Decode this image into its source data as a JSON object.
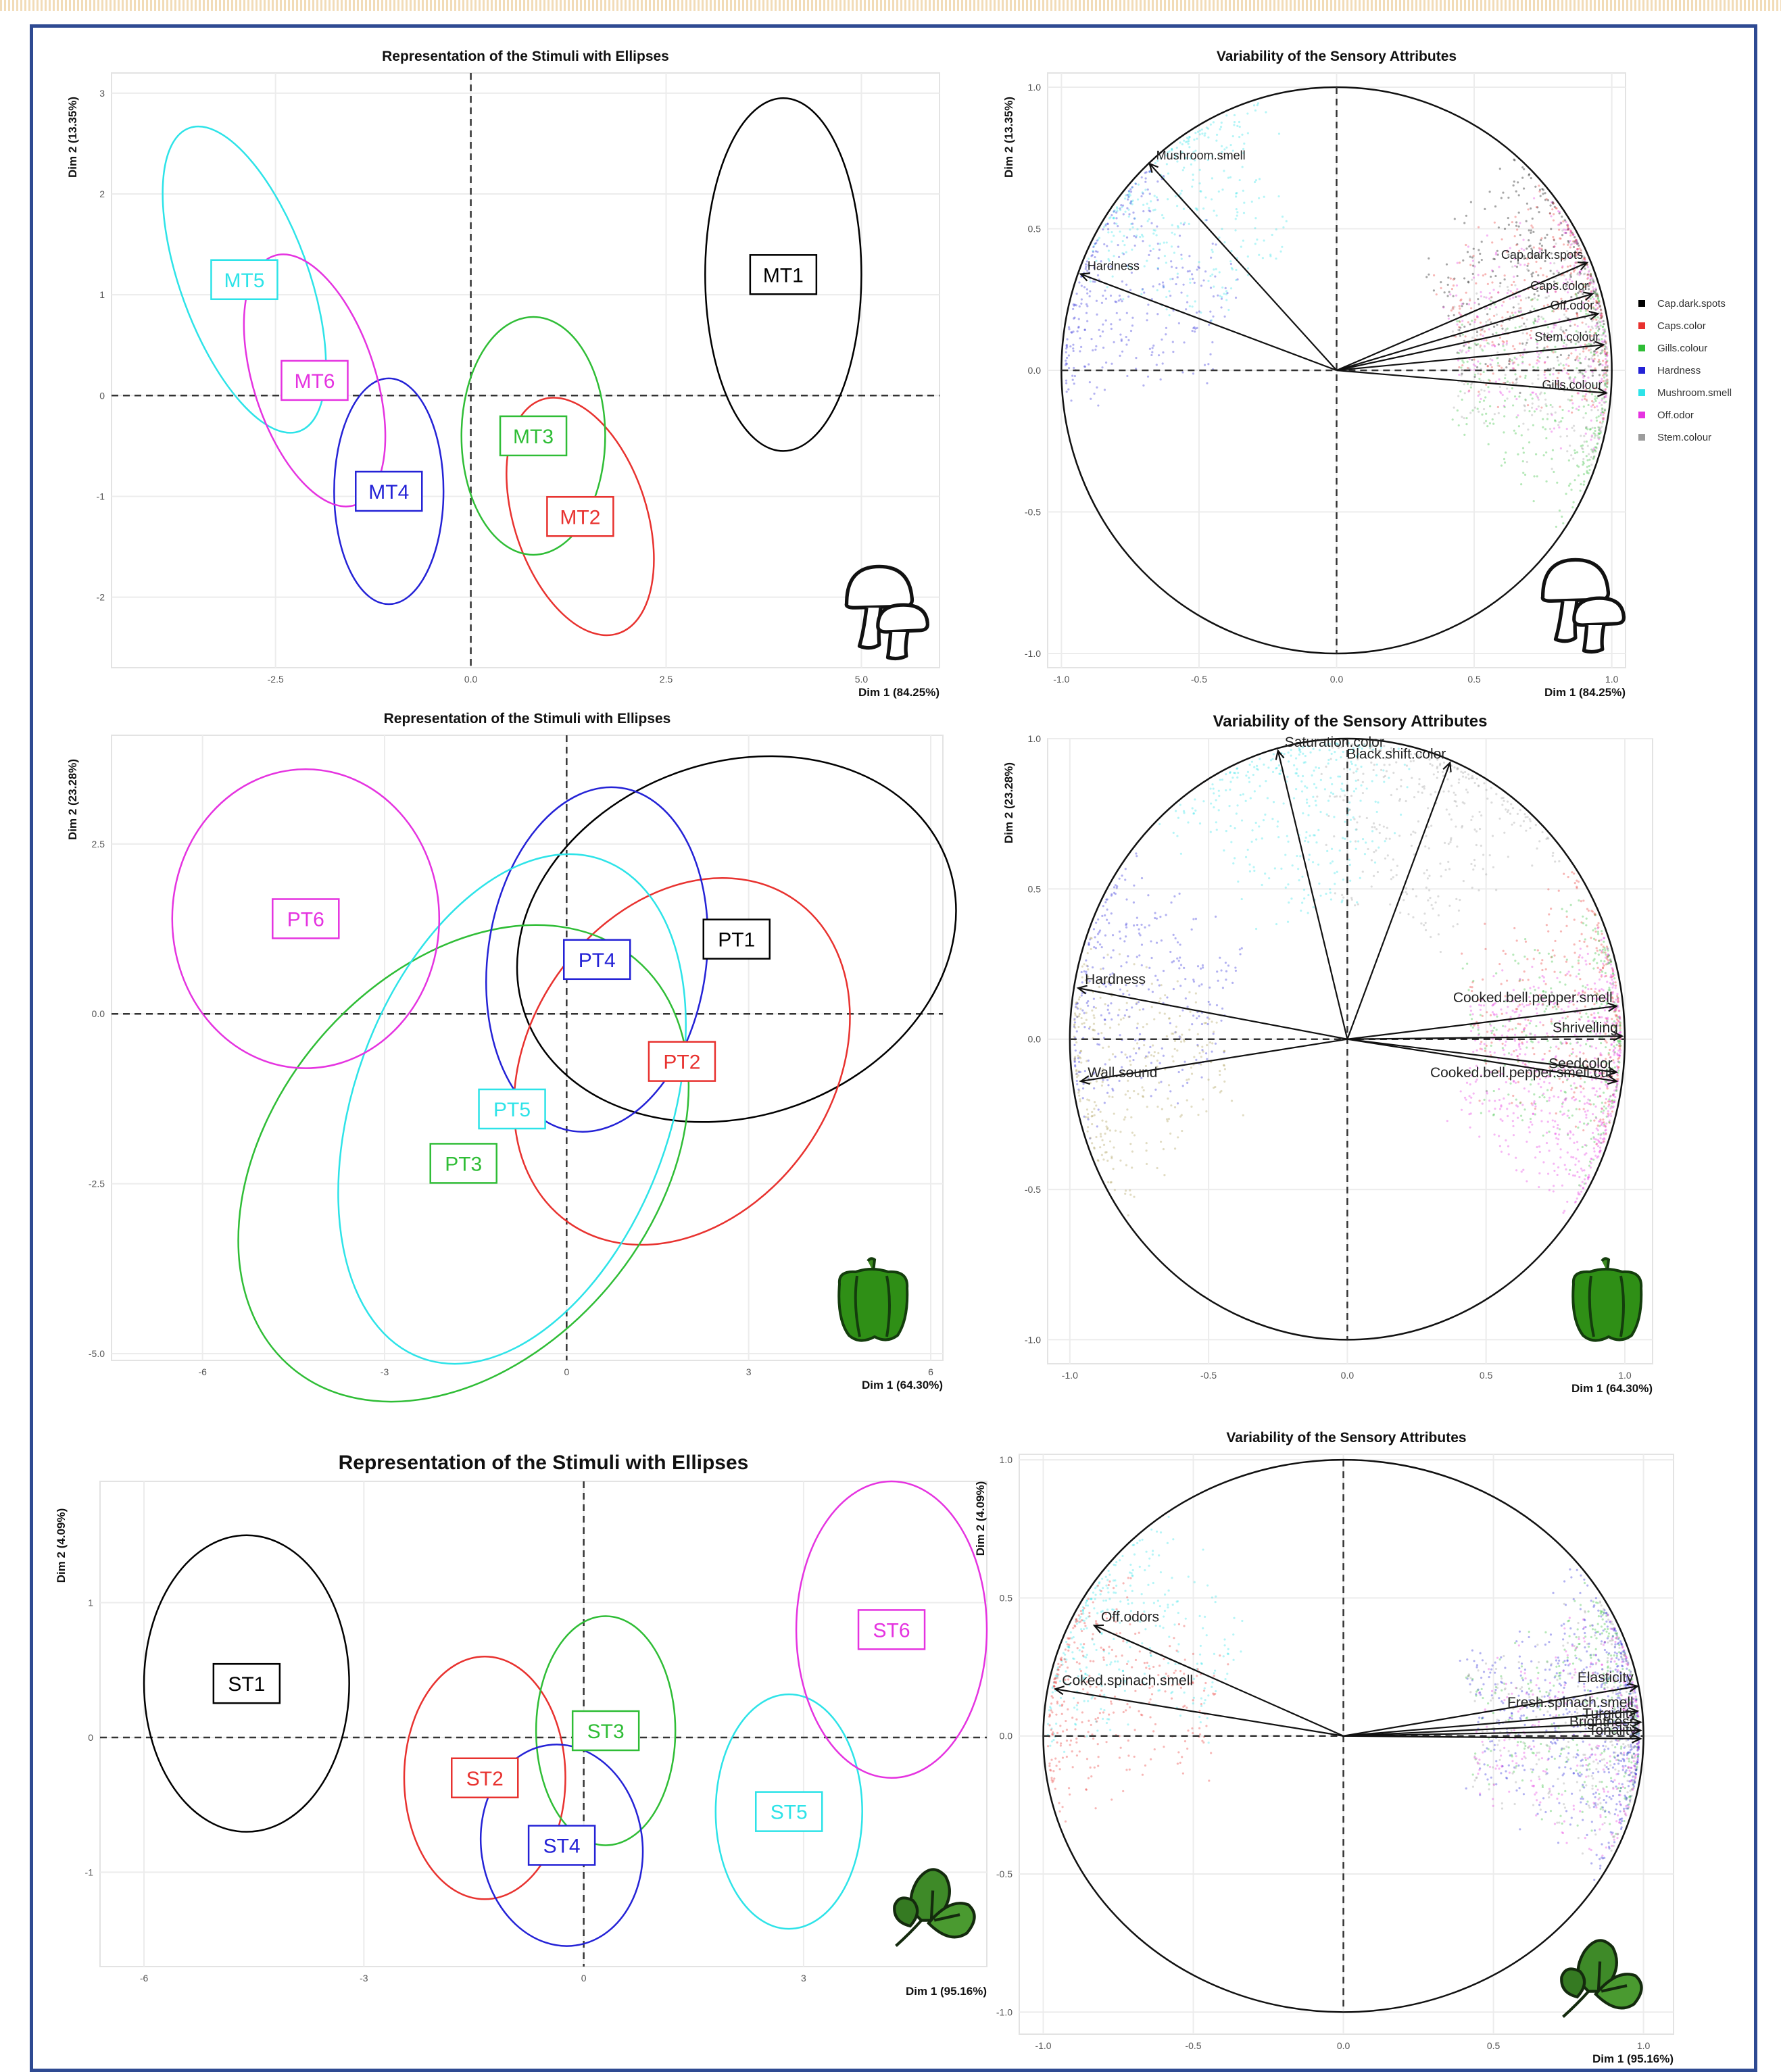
{
  "palette": {
    "black": "#000000",
    "red": "#e8322f",
    "green": "#2fbd36",
    "blue": "#2422d6",
    "cyan": "#2de3e8",
    "magenta": "#e533e0",
    "grey": "#9c9c9c",
    "navy": "#2e4a92"
  },
  "icons": {
    "mushroom": "mushroom-icon",
    "pepper": "bell-pepper-icon",
    "spinach": "spinach-icon"
  },
  "panels": [
    {
      "id": "mushroom-stimuli",
      "title": "Representation of the Stimuli with Ellipses",
      "xlabel": "Dim 1 (84.25%)",
      "ylabel": "Dim 2 (13.35%)"
    },
    {
      "id": "mushroom-attributes",
      "title": "Variability of the Sensory Attributes",
      "xlabel": "Dim 1 (84.25%)",
      "ylabel": "Dim 2 (13.35%)"
    },
    {
      "id": "pepper-stimuli",
      "title": "Representation of the Stimuli with Ellipses",
      "xlabel": "Dim 1 (64.30%)",
      "ylabel": "Dim 2 (23.28%)"
    },
    {
      "id": "pepper-attributes",
      "title": "Variability of the Sensory Attributes",
      "xlabel": "Dim 1 (64.30%)",
      "ylabel": "Dim 2 (23.28%)"
    },
    {
      "id": "spinach-stimuli",
      "title": "Representation of the Stimuli with Ellipses",
      "xlabel": "Dim 1 (95.16%)",
      "ylabel": "Dim 2 (4.09%)"
    },
    {
      "id": "spinach-attributes",
      "title": "Variability of the Sensory Attributes",
      "xlabel": "Dim 1 (95.16%)",
      "ylabel": "Dim 2 (4.09%)"
    }
  ],
  "chart_data": [
    {
      "type": "scatter",
      "subtype": "confidence-ellipses",
      "panel": 0,
      "xlim": [
        -4.6,
        6.0
      ],
      "ylim": [
        -2.7,
        3.2
      ],
      "xticks": [
        "-2.5",
        "0.0",
        "2.5",
        "5.0"
      ],
      "yticks": [
        "3",
        "2",
        "1",
        "0",
        "-1",
        "-2"
      ],
      "grid": true,
      "stimuli": [
        {
          "label": "MT1",
          "x": 4.0,
          "y": 1.2,
          "rx": 1.0,
          "ry": 1.75,
          "angle": 0,
          "color": "black"
        },
        {
          "label": "MT2",
          "x": 1.4,
          "y": -1.2,
          "rx": 0.85,
          "ry": 1.22,
          "angle": -18,
          "color": "red"
        },
        {
          "label": "MT3",
          "x": 0.8,
          "y": -0.4,
          "rx": 0.92,
          "ry": 1.18,
          "angle": 0,
          "color": "green"
        },
        {
          "label": "MT4",
          "x": -1.05,
          "y": -0.95,
          "rx": 0.7,
          "ry": 1.12,
          "angle": 0,
          "color": "blue"
        },
        {
          "label": "MT5",
          "x": -2.9,
          "y": 1.15,
          "rx": 0.82,
          "ry": 1.6,
          "angle": -20,
          "color": "cyan"
        },
        {
          "label": "MT6",
          "x": -2.0,
          "y": 0.15,
          "rx": 0.78,
          "ry": 1.3,
          "angle": -18,
          "color": "magenta"
        }
      ]
    },
    {
      "type": "scatter",
      "subtype": "correlation-circle",
      "panel": 1,
      "xlim": [
        -1.05,
        1.05
      ],
      "ylim": [
        -1.05,
        1.05
      ],
      "xticks": [
        "-1.0",
        "-0.5",
        "0.0",
        "0.5",
        "1.0"
      ],
      "yticks": [
        "1.0",
        "0.5",
        "0.0",
        "-0.5",
        "-1.0"
      ],
      "grid": true,
      "legend": "right",
      "legend_entries": [
        {
          "name": "Cap.dark.spots",
          "color": "black"
        },
        {
          "name": "Caps.color",
          "color": "red"
        },
        {
          "name": "Gills.colour",
          "color": "green"
        },
        {
          "name": "Hardness",
          "color": "blue"
        },
        {
          "name": "Mushroom.smell",
          "color": "cyan"
        },
        {
          "name": "Off.odor",
          "color": "magenta"
        },
        {
          "name": "Stem.colour",
          "color": "grey"
        }
      ],
      "vectors": [
        {
          "label": "Mushroom.smell",
          "x": -0.68,
          "y": 0.73,
          "color": "cyan"
        },
        {
          "label": "Hardness",
          "x": -0.93,
          "y": 0.34,
          "color": "blue"
        },
        {
          "label": "Cap.dark.spots",
          "x": 0.91,
          "y": 0.38,
          "color": "black"
        },
        {
          "label": "Caps.color",
          "x": 0.93,
          "y": 0.27,
          "color": "red"
        },
        {
          "label": "Off.odor",
          "x": 0.95,
          "y": 0.2,
          "color": "magenta"
        },
        {
          "label": "Stem.colour",
          "x": 0.97,
          "y": 0.09,
          "color": "grey"
        },
        {
          "label": "Gills.colour",
          "x": 0.98,
          "y": -0.08,
          "color": "green"
        }
      ]
    },
    {
      "type": "scatter",
      "subtype": "confidence-ellipses",
      "panel": 2,
      "xlim": [
        -7.5,
        6.2
      ],
      "ylim": [
        -5.1,
        4.1
      ],
      "xticks": [
        "-6",
        "-3",
        "0",
        "3",
        "6"
      ],
      "yticks": [
        "2.5",
        "0.0",
        "-2.5",
        "-5.0"
      ],
      "grid": true,
      "stimuli": [
        {
          "label": "PT1",
          "x": 2.8,
          "y": 1.1,
          "rx": 3.7,
          "ry": 2.6,
          "angle": -20,
          "color": "black"
        },
        {
          "label": "PT2",
          "x": 1.9,
          "y": -0.7,
          "rx": 2.5,
          "ry": 2.9,
          "angle": 35,
          "color": "red"
        },
        {
          "label": "PT3",
          "x": -1.7,
          "y": -2.2,
          "rx": 4.4,
          "ry": 2.8,
          "angle": -50,
          "color": "green"
        },
        {
          "label": "PT4",
          "x": 0.5,
          "y": 0.8,
          "rx": 1.8,
          "ry": 2.55,
          "angle": 8,
          "color": "blue"
        },
        {
          "label": "PT5",
          "x": -0.9,
          "y": -1.4,
          "rx": 2.6,
          "ry": 3.9,
          "angle": 20,
          "color": "cyan"
        },
        {
          "label": "PT6",
          "x": -4.3,
          "y": 1.4,
          "rx": 2.2,
          "ry": 2.2,
          "angle": 0,
          "color": "magenta"
        }
      ]
    },
    {
      "type": "scatter",
      "subtype": "correlation-circle",
      "panel": 3,
      "xlim": [
        -1.08,
        1.1
      ],
      "ylim": [
        -1.08,
        1.0
      ],
      "xticks": [
        "-1.0",
        "-0.5",
        "0.0",
        "0.5",
        "1.0"
      ],
      "yticks": [
        "1.0",
        "0.5",
        "0.0",
        "-0.5",
        "-1.0"
      ],
      "grid": true,
      "vectors": [
        {
          "label": "Saturation.color",
          "x": -0.25,
          "y": 0.96,
          "color": "cyan"
        },
        {
          "label": "Black.shift.color",
          "x": 0.37,
          "y": 0.92,
          "color": "grey"
        },
        {
          "label": "Hardness",
          "x": -0.97,
          "y": 0.17,
          "color": "blue"
        },
        {
          "label": "Wall.sound",
          "x": -0.96,
          "y": -0.14,
          "color": "olive"
        },
        {
          "label": "Cooked.bell.pepper.smell",
          "x": 0.97,
          "y": 0.11,
          "color": "red"
        },
        {
          "label": "Shrivelling",
          "x": 0.99,
          "y": 0.01,
          "color": "green"
        },
        {
          "label": "Seedcolor",
          "x": 0.97,
          "y": -0.11,
          "color": "magenta"
        },
        {
          "label": "Cooked.bell.pepper.smell.cut",
          "x": 0.97,
          "y": -0.14,
          "color": "magenta"
        }
      ]
    },
    {
      "type": "scatter",
      "subtype": "confidence-ellipses",
      "panel": 4,
      "xlim": [
        -6.6,
        5.5
      ],
      "ylim": [
        -1.7,
        1.9
      ],
      "xticks": [
        "-6",
        "-3",
        "0",
        "3"
      ],
      "yticks": [
        "1",
        "0",
        "-1"
      ],
      "grid": true,
      "stimuli": [
        {
          "label": "ST1",
          "x": -4.6,
          "y": 0.4,
          "rx": 1.4,
          "ry": 1.1,
          "angle": 0,
          "color": "black"
        },
        {
          "label": "ST2",
          "x": -1.35,
          "y": -0.3,
          "rx": 1.1,
          "ry": 0.9,
          "angle": 0,
          "color": "red"
        },
        {
          "label": "ST3",
          "x": 0.3,
          "y": 0.05,
          "rx": 0.95,
          "ry": 0.85,
          "angle": 0,
          "color": "green"
        },
        {
          "label": "ST4",
          "x": -0.3,
          "y": -0.8,
          "rx": 1.1,
          "ry": 0.75,
          "angle": -8,
          "color": "blue"
        },
        {
          "label": "ST5",
          "x": 2.8,
          "y": -0.55,
          "rx": 1.0,
          "ry": 0.87,
          "angle": 0,
          "color": "cyan"
        },
        {
          "label": "ST6",
          "x": 4.2,
          "y": 0.8,
          "rx": 1.3,
          "ry": 1.1,
          "angle": 0,
          "color": "magenta"
        }
      ]
    },
    {
      "type": "scatter",
      "subtype": "correlation-circle",
      "panel": 5,
      "xlim": [
        -1.08,
        1.1
      ],
      "ylim": [
        -1.08,
        1.02
      ],
      "xticks": [
        "-1.0",
        "-0.5",
        "0.0",
        "0.5",
        "1.0"
      ],
      "yticks": [
        "1.0",
        "0.5",
        "0.0",
        "-0.5",
        "-1.0"
      ],
      "grid": true,
      "vectors": [
        {
          "label": "Off.odors",
          "x": -0.83,
          "y": 0.4,
          "color": "cyan"
        },
        {
          "label": "Coked.spinach.smell",
          "x": -0.96,
          "y": 0.17,
          "color": "red"
        },
        {
          "label": "Elasticity",
          "x": 0.98,
          "y": 0.18,
          "color": "blue"
        },
        {
          "label": "Fresh.spinach.smell",
          "x": 0.98,
          "y": 0.09,
          "color": "green"
        },
        {
          "label": "Turgidity",
          "x": 0.99,
          "y": 0.05,
          "color": "grey"
        },
        {
          "label": "Brightness",
          "x": 0.99,
          "y": 0.02,
          "color": "magenta"
        },
        {
          "label": "Tonality",
          "x": 0.99,
          "y": -0.01,
          "color": "blue"
        }
      ]
    }
  ]
}
